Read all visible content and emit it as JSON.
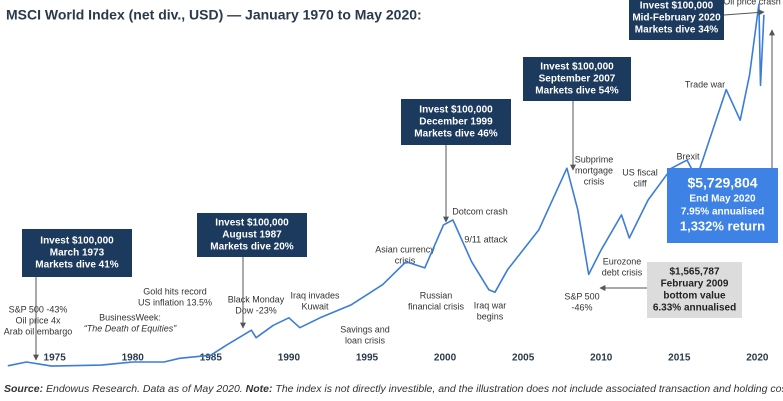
{
  "chart_data": {
    "type": "line",
    "title": "MSCI World Index (net div., USD) — January 1970 to May 2020:",
    "x": [
      1972,
      1973.2,
      1974.8,
      1978,
      1980,
      1982,
      1983,
      1985,
      1986,
      1987.6,
      1987.9,
      1989,
      1990,
      1990.7,
      1992,
      1994,
      1996,
      1997.5,
      1998.7,
      1999.9,
      2000.5,
      2001.7,
      2002.8,
      2003.2,
      2004,
      2006,
      2007.8,
      2008.5,
      2009.2,
      2010,
      2011.3,
      2011.8,
      2013,
      2014.5,
      2015.5,
      2016.1,
      2016.5,
      2018,
      2018.9,
      2019.5,
      2020.1,
      2020.2,
      2020.42
    ],
    "series": [
      {
        "name": "MSCI World Index",
        "color": "#3b7dd8",
        "values": [
          100000,
          160000,
          95000,
          110000,
          160000,
          160000,
          220000,
          270000,
          430000,
          670000,
          550000,
          750000,
          870000,
          710000,
          870000,
          1080000,
          1400000,
          1770000,
          1670000,
          2360000,
          2440000,
          1770000,
          1320000,
          1280000,
          1640000,
          2280000,
          3270000,
          2600000,
          1565787,
          1960000,
          2520000,
          2150000,
          2760000,
          3270000,
          3400000,
          3110000,
          3400000,
          4530000,
          4040000,
          4770000,
          5900000,
          4600000,
          5729804
        ]
      }
    ],
    "xlim": [
      1971.5,
      2021
    ],
    "ylim": [
      0,
      6000000
    ],
    "xticks": [
      1975,
      1980,
      1985,
      1990,
      1995,
      2000,
      2005,
      2010,
      2015,
      2020
    ],
    "callouts": [
      {
        "lines": [
          "Invest $100,000",
          "March 1973",
          "Markets dive 41%"
        ]
      },
      {
        "lines": [
          "Invest $100,000",
          "August 1987",
          "Markets dive 20%"
        ]
      },
      {
        "lines": [
          "Invest $100,000",
          "December 1999",
          "Markets dive 46%"
        ]
      },
      {
        "lines": [
          "Invest $100,000",
          "September 2007",
          "Markets dive 54%"
        ]
      },
      {
        "lines": [
          "Invest $100,000",
          "Mid-February 2020",
          "Markets dive 34%"
        ]
      },
      {
        "lines": [
          "$5,729,804",
          "End May 2020",
          "7.95% annualised",
          "1,332% return"
        ]
      },
      {
        "lines": [
          "$1,565,787",
          "February 2009",
          "bottom value",
          "6.33% annualised"
        ]
      }
    ],
    "events": [
      {
        "lines": [
          "S&P 500 -43%",
          "Oil price 4x",
          "Arab oil embargo"
        ]
      },
      {
        "lines": [
          "BusinessWeek:",
          "“The Death of Equities”"
        ]
      },
      {
        "lines": [
          "Gold hits record",
          "US inflation 13.5%"
        ]
      },
      {
        "lines": [
          "Black Monday",
          "Dow -23%"
        ]
      },
      {
        "lines": [
          "Iraq invades",
          "Kuwait"
        ]
      },
      {
        "lines": [
          "Savings and",
          "loan crisis"
        ]
      },
      {
        "lines": [
          "Asian currency",
          "crisis"
        ]
      },
      {
        "lines": [
          "Dotcom crash"
        ]
      },
      {
        "lines": [
          "9/11 attack"
        ]
      },
      {
        "lines": [
          "Russian",
          "financial crisis"
        ]
      },
      {
        "lines": [
          "Iraq war",
          "begins"
        ]
      },
      {
        "lines": [
          "Subprime",
          "mortgage",
          "crisis"
        ]
      },
      {
        "lines": [
          "S&P 500",
          "-46%"
        ]
      },
      {
        "lines": [
          "Eurozone",
          "debt crisis"
        ]
      },
      {
        "lines": [
          "US fiscal",
          "cliff"
        ]
      },
      {
        "lines": [
          "Brexit"
        ]
      },
      {
        "lines": [
          "Trade war"
        ]
      },
      {
        "lines": [
          "Oil price crash"
        ]
      }
    ]
  },
  "footnote": {
    "source_label": "Source:",
    "source_text": "Endowus Research. Data as of May 2020.",
    "note_label": "Note:",
    "note_text": "The index is not directly investible, and the illustration does not include associated transaction and holding costs."
  }
}
